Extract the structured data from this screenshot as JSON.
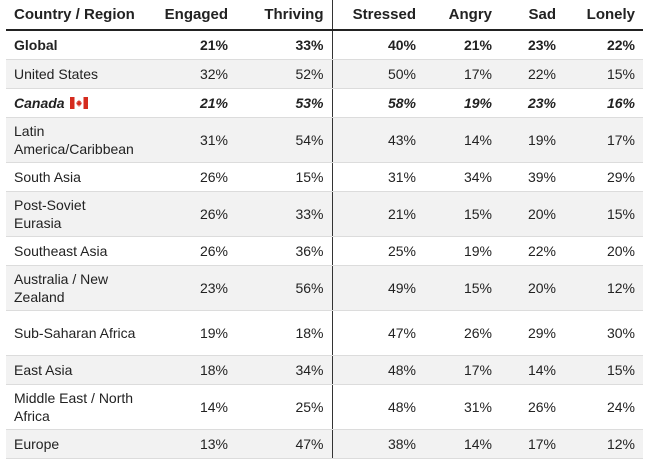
{
  "chart_data": {
    "type": "table",
    "columns": [
      "Country / Region",
      "Engaged",
      "Thriving",
      "Stressed",
      "Angry",
      "Sad",
      "Lonely"
    ],
    "rows": [
      {
        "region": "Global",
        "values": [
          "21%",
          "33%",
          "40%",
          "21%",
          "23%",
          "22%"
        ],
        "bold": true
      },
      {
        "region": "United States",
        "values": [
          "32%",
          "52%",
          "50%",
          "17%",
          "22%",
          "15%"
        ]
      },
      {
        "region": "Canada",
        "values": [
          "21%",
          "53%",
          "58%",
          "19%",
          "23%",
          "16%"
        ],
        "bold": true,
        "italic": true,
        "flag": "canada-flag-icon"
      },
      {
        "region": "Latin America/Caribbean",
        "values": [
          "31%",
          "54%",
          "43%",
          "14%",
          "19%",
          "17%"
        ]
      },
      {
        "region": "South Asia",
        "values": [
          "26%",
          "15%",
          "31%",
          "34%",
          "39%",
          "29%"
        ]
      },
      {
        "region": "Post-Soviet Eurasia",
        "values": [
          "26%",
          "33%",
          "21%",
          "15%",
          "20%",
          "15%"
        ]
      },
      {
        "region": "Southeast Asia",
        "values": [
          "26%",
          "36%",
          "25%",
          "19%",
          "22%",
          "20%"
        ]
      },
      {
        "region": "Australia / New Zealand",
        "values": [
          "23%",
          "56%",
          "49%",
          "15%",
          "20%",
          "12%"
        ]
      },
      {
        "region": "Sub-Saharan Africa",
        "values": [
          "19%",
          "18%",
          "47%",
          "26%",
          "29%",
          "30%"
        ]
      },
      {
        "region": "East Asia",
        "values": [
          "18%",
          "34%",
          "48%",
          "17%",
          "14%",
          "15%"
        ]
      },
      {
        "region": "Middle East / North Africa",
        "values": [
          "14%",
          "25%",
          "48%",
          "31%",
          "26%",
          "24%"
        ]
      },
      {
        "region": "Europe",
        "values": [
          "13%",
          "47%",
          "38%",
          "14%",
          "17%",
          "12%"
        ]
      }
    ],
    "colors": {
      "header_rule": "#222222",
      "row_stripe": "#f2f2f2",
      "row_rule": "#dcdcdc",
      "flag_red": "#d52b1e"
    }
  }
}
